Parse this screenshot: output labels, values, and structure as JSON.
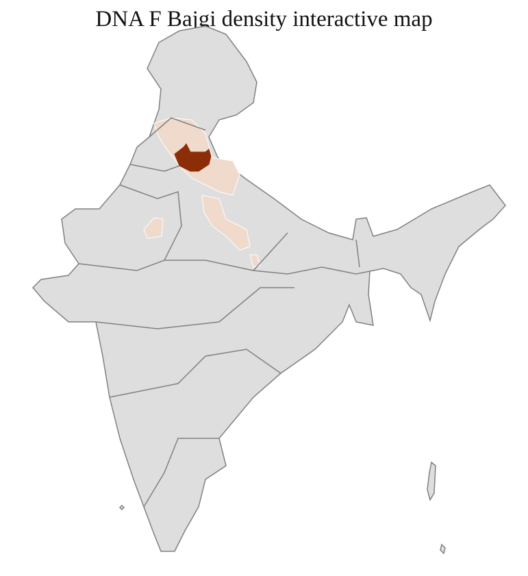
{
  "title": "DNA F Bajgi density interactive map",
  "colors": {
    "land": "#dedede",
    "state_border": "#808080",
    "district_border": "#ffffff",
    "high_density": "#8b2e08",
    "low_density": "#efdacc"
  }
}
